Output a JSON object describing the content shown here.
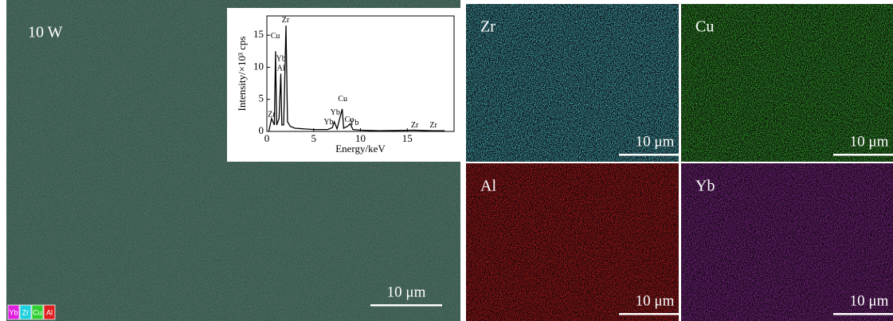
{
  "main_panel": {
    "label": "10 W",
    "scale_bar": "10 μm",
    "base_color": "#2b5a4b",
    "legend": [
      {
        "text": "Yb",
        "color": "#e020e0"
      },
      {
        "text": "Zr",
        "color": "#20d0e0"
      },
      {
        "text": "Cu",
        "color": "#30d030"
      },
      {
        "text": "Al",
        "color": "#e02020"
      }
    ]
  },
  "maps": [
    {
      "element": "Zr",
      "scale_bar": "10 μm",
      "color": "#4fd6e0"
    },
    {
      "element": "Cu",
      "scale_bar": "10 μm",
      "color": "#38c830"
    },
    {
      "element": "Al",
      "scale_bar": "10 μm",
      "color": "#e02020"
    },
    {
      "element": "Yb",
      "scale_bar": "10 μm",
      "color": "#a030b0"
    }
  ],
  "chart_data": {
    "type": "line",
    "xlabel": "Energy/keV",
    "ylabel": "Intensity/×10³ cps",
    "color": "#000000",
    "x": [
      0.2,
      0.5,
      0.8,
      0.93,
      1.05,
      1.3,
      1.49,
      1.6,
      1.8,
      2.04,
      2.2,
      2.5,
      3,
      5,
      6.5,
      7.0,
      7.2,
      7.5,
      8.05,
      8.2,
      8.6,
      8.9,
      9.2,
      10,
      12,
      15.7,
      17.7,
      19
    ],
    "values": [
      0,
      2,
      1,
      12.5,
      1,
      2,
      9,
      1,
      1,
      16.5,
      1.5,
      0.8,
      0.5,
      0.3,
      0.3,
      0.6,
      1.5,
      0.4,
      3.5,
      0.5,
      0.8,
      1.2,
      0.3,
      0.2,
      0.1,
      0.2,
      0.1,
      0.1
    ],
    "xlim": [
      0,
      20
    ],
    "ylim": [
      0,
      18
    ],
    "xticks": [
      0,
      5,
      10,
      15
    ],
    "yticks": [
      0,
      5,
      10,
      15
    ],
    "annotations": [
      {
        "text": "Cu",
        "x": 0.9,
        "y": 14.8
      },
      {
        "text": "Zr",
        "x": 2.0,
        "y": 17.3
      },
      {
        "text": "Yb",
        "x": 1.5,
        "y": 11.3
      },
      {
        "text": "Al",
        "x": 1.5,
        "y": 9.8
      },
      {
        "text": "Zr",
        "x": 0.5,
        "y": 2.6
      },
      {
        "text": "Yb",
        "x": 7.3,
        "y": 2.9
      },
      {
        "text": "Cu",
        "x": 8.1,
        "y": 5.0
      },
      {
        "text": "Yb",
        "x": 6.6,
        "y": 1.4
      },
      {
        "text": "Cu",
        "x": 8.8,
        "y": 1.8
      },
      {
        "text": "Yb",
        "x": 9.3,
        "y": 1.3
      },
      {
        "text": "Zr",
        "x": 15.8,
        "y": 0.9
      },
      {
        "text": "Zr",
        "x": 17.8,
        "y": 0.9
      }
    ]
  }
}
